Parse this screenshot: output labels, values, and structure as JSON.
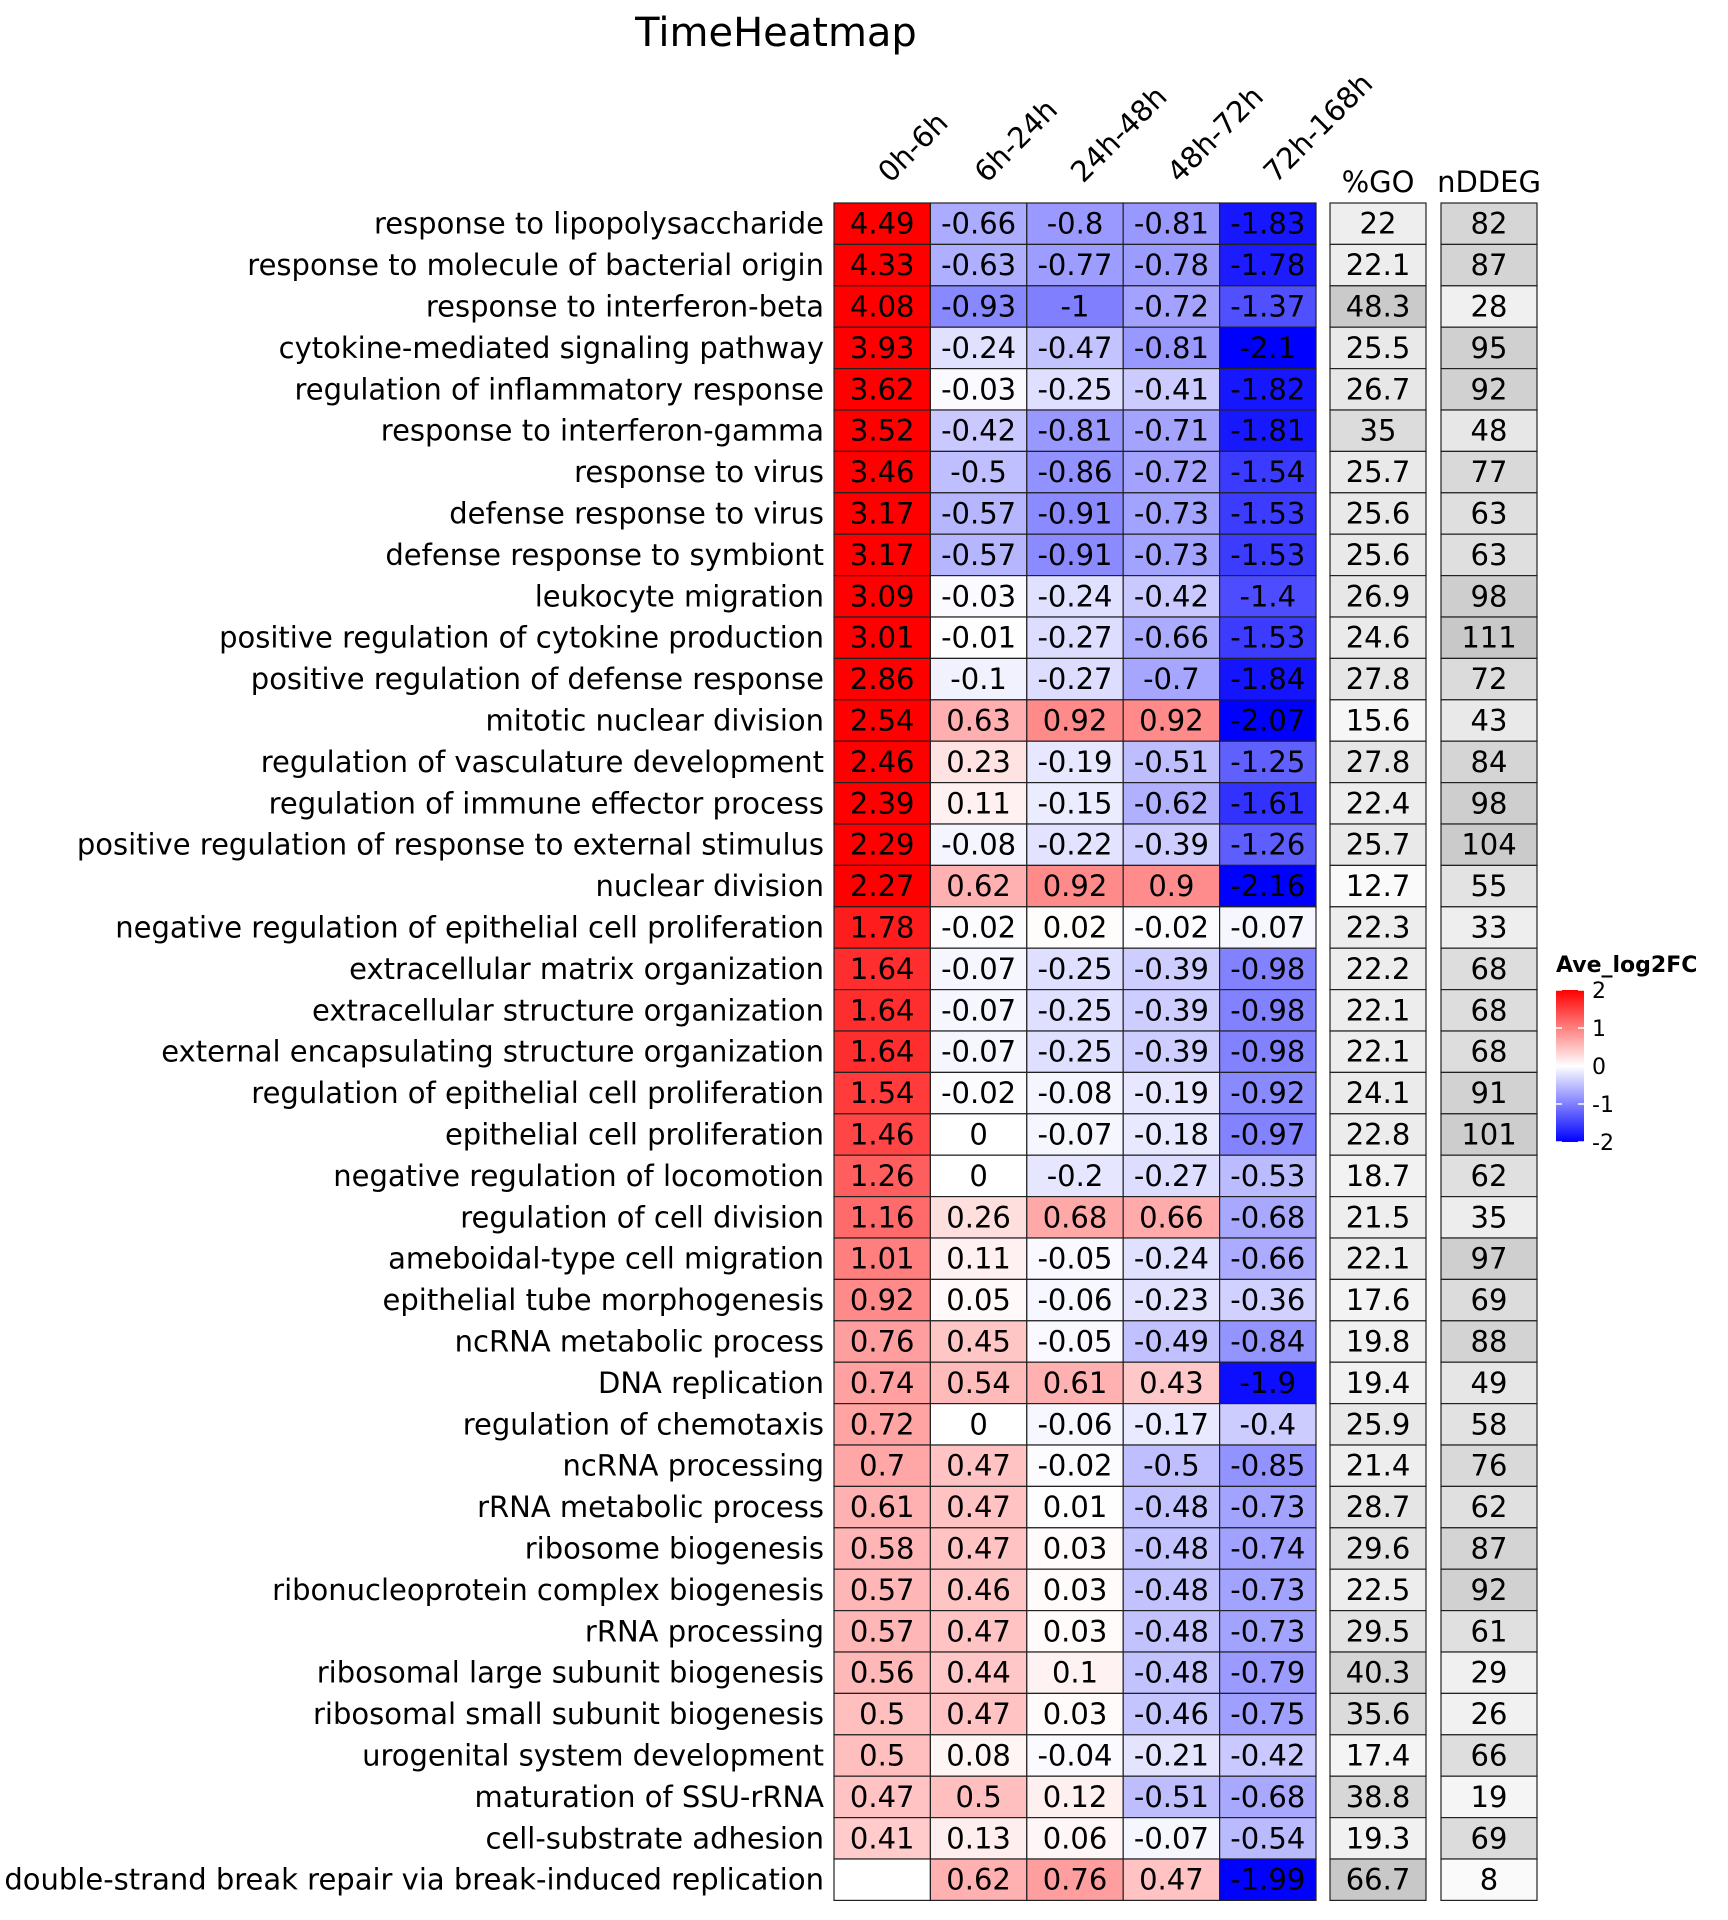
{
  "chart_data": {
    "type": "heatmap",
    "title": "TimeHeatmap",
    "columns": [
      "0h-6h",
      "6h-24h",
      "24h-48h",
      "48h-72h",
      "72h-168h"
    ],
    "extra_columns": [
      "%GO",
      "nDDEG"
    ],
    "legend": {
      "title": "Ave_log2FC",
      "ticks": [
        "2",
        "1",
        "0",
        "-1",
        "-2"
      ],
      "range": [
        -2,
        2
      ],
      "placement": "right"
    },
    "colors": {
      "high": "#ff0000",
      "mid": "#ffffff",
      "low": "#0000ff"
    },
    "rows": [
      {
        "term": "response to lipopolysaccharide",
        "values": [
          "4.49",
          "-0.66",
          "-0.8",
          "-0.81",
          "-1.83"
        ],
        "go": "22",
        "nddeg": "82"
      },
      {
        "term": "response to molecule of bacterial origin",
        "values": [
          "4.33",
          "-0.63",
          "-0.77",
          "-0.78",
          "-1.78"
        ],
        "go": "22.1",
        "nddeg": "87"
      },
      {
        "term": "response to interferon-beta",
        "values": [
          "4.08",
          "-0.93",
          "-1",
          "-0.72",
          "-1.37"
        ],
        "go": "48.3",
        "nddeg": "28"
      },
      {
        "term": "cytokine-mediated signaling pathway",
        "values": [
          "3.93",
          "-0.24",
          "-0.47",
          "-0.81",
          "-2.1"
        ],
        "go": "25.5",
        "nddeg": "95"
      },
      {
        "term": "regulation of inflammatory response",
        "values": [
          "3.62",
          "-0.03",
          "-0.25",
          "-0.41",
          "-1.82"
        ],
        "go": "26.7",
        "nddeg": "92"
      },
      {
        "term": "response to interferon-gamma",
        "values": [
          "3.52",
          "-0.42",
          "-0.81",
          "-0.71",
          "-1.81"
        ],
        "go": "35",
        "nddeg": "48"
      },
      {
        "term": "response to virus",
        "values": [
          "3.46",
          "-0.5",
          "-0.86",
          "-0.72",
          "-1.54"
        ],
        "go": "25.7",
        "nddeg": "77"
      },
      {
        "term": "defense response to virus",
        "values": [
          "3.17",
          "-0.57",
          "-0.91",
          "-0.73",
          "-1.53"
        ],
        "go": "25.6",
        "nddeg": "63"
      },
      {
        "term": "defense response to symbiont",
        "values": [
          "3.17",
          "-0.57",
          "-0.91",
          "-0.73",
          "-1.53"
        ],
        "go": "25.6",
        "nddeg": "63"
      },
      {
        "term": "leukocyte migration",
        "values": [
          "3.09",
          "-0.03",
          "-0.24",
          "-0.42",
          "-1.4"
        ],
        "go": "26.9",
        "nddeg": "98"
      },
      {
        "term": "positive regulation of cytokine production",
        "values": [
          "3.01",
          "-0.01",
          "-0.27",
          "-0.66",
          "-1.53"
        ],
        "go": "24.6",
        "nddeg": "111"
      },
      {
        "term": "positive regulation of defense response",
        "values": [
          "2.86",
          "-0.1",
          "-0.27",
          "-0.7",
          "-1.84"
        ],
        "go": "27.8",
        "nddeg": "72"
      },
      {
        "term": "mitotic nuclear division",
        "values": [
          "2.54",
          "0.63",
          "0.92",
          "0.92",
          "-2.07"
        ],
        "go": "15.6",
        "nddeg": "43"
      },
      {
        "term": "regulation of vasculature development",
        "values": [
          "2.46",
          "0.23",
          "-0.19",
          "-0.51",
          "-1.25"
        ],
        "go": "27.8",
        "nddeg": "84"
      },
      {
        "term": "regulation of immune effector process",
        "values": [
          "2.39",
          "0.11",
          "-0.15",
          "-0.62",
          "-1.61"
        ],
        "go": "22.4",
        "nddeg": "98"
      },
      {
        "term": "positive regulation of response to external stimulus",
        "values": [
          "2.29",
          "-0.08",
          "-0.22",
          "-0.39",
          "-1.26"
        ],
        "go": "25.7",
        "nddeg": "104"
      },
      {
        "term": "nuclear division",
        "values": [
          "2.27",
          "0.62",
          "0.92",
          "0.9",
          "-2.16"
        ],
        "go": "12.7",
        "nddeg": "55"
      },
      {
        "term": "negative regulation of epithelial cell proliferation",
        "values": [
          "1.78",
          "-0.02",
          "0.02",
          "-0.02",
          "-0.07"
        ],
        "go": "22.3",
        "nddeg": "33"
      },
      {
        "term": "extracellular matrix organization",
        "values": [
          "1.64",
          "-0.07",
          "-0.25",
          "-0.39",
          "-0.98"
        ],
        "go": "22.2",
        "nddeg": "68"
      },
      {
        "term": "extracellular structure organization",
        "values": [
          "1.64",
          "-0.07",
          "-0.25",
          "-0.39",
          "-0.98"
        ],
        "go": "22.1",
        "nddeg": "68"
      },
      {
        "term": "external encapsulating structure organization",
        "values": [
          "1.64",
          "-0.07",
          "-0.25",
          "-0.39",
          "-0.98"
        ],
        "go": "22.1",
        "nddeg": "68"
      },
      {
        "term": "regulation of epithelial cell proliferation",
        "values": [
          "1.54",
          "-0.02",
          "-0.08",
          "-0.19",
          "-0.92"
        ],
        "go": "24.1",
        "nddeg": "91"
      },
      {
        "term": "epithelial cell proliferation",
        "values": [
          "1.46",
          "0",
          "-0.07",
          "-0.18",
          "-0.97"
        ],
        "go": "22.8",
        "nddeg": "101"
      },
      {
        "term": "negative regulation of locomotion",
        "values": [
          "1.26",
          "0",
          "-0.2",
          "-0.27",
          "-0.53"
        ],
        "go": "18.7",
        "nddeg": "62"
      },
      {
        "term": "regulation of cell division",
        "values": [
          "1.16",
          "0.26",
          "0.68",
          "0.66",
          "-0.68"
        ],
        "go": "21.5",
        "nddeg": "35"
      },
      {
        "term": "ameboidal-type cell migration",
        "values": [
          "1.01",
          "0.11",
          "-0.05",
          "-0.24",
          "-0.66"
        ],
        "go": "22.1",
        "nddeg": "97"
      },
      {
        "term": "epithelial tube morphogenesis",
        "values": [
          "0.92",
          "0.05",
          "-0.06",
          "-0.23",
          "-0.36"
        ],
        "go": "17.6",
        "nddeg": "69"
      },
      {
        "term": "ncRNA metabolic process",
        "values": [
          "0.76",
          "0.45",
          "-0.05",
          "-0.49",
          "-0.84"
        ],
        "go": "19.8",
        "nddeg": "88"
      },
      {
        "term": "DNA replication",
        "values": [
          "0.74",
          "0.54",
          "0.61",
          "0.43",
          "-1.9"
        ],
        "go": "19.4",
        "nddeg": "49"
      },
      {
        "term": "regulation of chemotaxis",
        "values": [
          "0.72",
          "0",
          "-0.06",
          "-0.17",
          "-0.4"
        ],
        "go": "25.9",
        "nddeg": "58"
      },
      {
        "term": "ncRNA processing",
        "values": [
          "0.7",
          "0.47",
          "-0.02",
          "-0.5",
          "-0.85"
        ],
        "go": "21.4",
        "nddeg": "76"
      },
      {
        "term": "rRNA metabolic process",
        "values": [
          "0.61",
          "0.47",
          "0.01",
          "-0.48",
          "-0.73"
        ],
        "go": "28.7",
        "nddeg": "62"
      },
      {
        "term": "ribosome biogenesis",
        "values": [
          "0.58",
          "0.47",
          "0.03",
          "-0.48",
          "-0.74"
        ],
        "go": "29.6",
        "nddeg": "87"
      },
      {
        "term": "ribonucleoprotein complex biogenesis",
        "values": [
          "0.57",
          "0.46",
          "0.03",
          "-0.48",
          "-0.73"
        ],
        "go": "22.5",
        "nddeg": "92"
      },
      {
        "term": "rRNA processing",
        "values": [
          "0.57",
          "0.47",
          "0.03",
          "-0.48",
          "-0.73"
        ],
        "go": "29.5",
        "nddeg": "61"
      },
      {
        "term": "ribosomal large subunit biogenesis",
        "values": [
          "0.56",
          "0.44",
          "0.1",
          "-0.48",
          "-0.79"
        ],
        "go": "40.3",
        "nddeg": "29"
      },
      {
        "term": "ribosomal small subunit biogenesis",
        "values": [
          "0.5",
          "0.47",
          "0.03",
          "-0.46",
          "-0.75"
        ],
        "go": "35.6",
        "nddeg": "26"
      },
      {
        "term": "urogenital system development",
        "values": [
          "0.5",
          "0.08",
          "-0.04",
          "-0.21",
          "-0.42"
        ],
        "go": "17.4",
        "nddeg": "66"
      },
      {
        "term": "maturation of SSU-rRNA",
        "values": [
          "0.47",
          "0.5",
          "0.12",
          "-0.51",
          "-0.68"
        ],
        "go": "38.8",
        "nddeg": "19"
      },
      {
        "term": "cell-substrate adhesion",
        "values": [
          "0.41",
          "0.13",
          "0.06",
          "-0.07",
          "-0.54"
        ],
        "go": "19.3",
        "nddeg": "69"
      },
      {
        "term": "double-strand break repair via break-induced replication",
        "values": [
          "",
          "0.62",
          "0.76",
          "0.47",
          "-1.99"
        ],
        "go": "66.7",
        "nddeg": "8"
      }
    ]
  }
}
